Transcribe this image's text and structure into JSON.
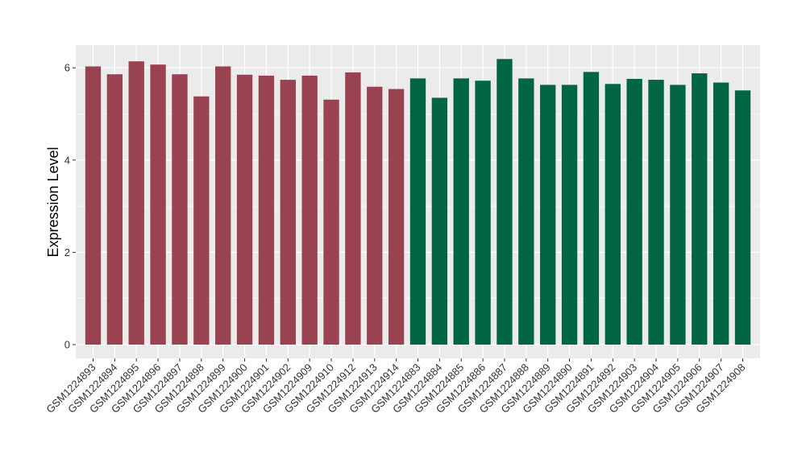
{
  "chart_data": {
    "type": "bar",
    "title": "",
    "xlabel": "",
    "ylabel": "Expression Level",
    "ylim": [
      0,
      6.5
    ],
    "yticks": [
      0,
      2,
      4,
      6
    ],
    "grid": true,
    "legend": "none",
    "categories": [
      "GSM1224893",
      "GSM1224894",
      "GSM1224895",
      "GSM1224896",
      "GSM1224897",
      "GSM1224898",
      "GSM1224899",
      "GSM1224900",
      "GSM1224901",
      "GSM1224902",
      "GSM1224909",
      "GSM1224910",
      "GSM1224912",
      "GSM1224913",
      "GSM1224914",
      "GSM1224883",
      "GSM1224884",
      "GSM1224885",
      "GSM1224886",
      "GSM1224887",
      "GSM1224888",
      "GSM1224889",
      "GSM1224890",
      "GSM1224891",
      "GSM1224892",
      "GSM1224903",
      "GSM1224904",
      "GSM1224905",
      "GSM1224906",
      "GSM1224907",
      "GSM1224908"
    ],
    "values": [
      6.03,
      5.86,
      6.14,
      6.07,
      5.86,
      5.38,
      6.03,
      5.85,
      5.83,
      5.74,
      5.83,
      5.31,
      5.9,
      5.59,
      5.54,
      5.77,
      5.35,
      5.77,
      5.72,
      6.19,
      5.77,
      5.63,
      5.63,
      5.91,
      5.65,
      5.76,
      5.74,
      5.63,
      5.88,
      5.68,
      5.51
    ],
    "group_sizes": [
      15,
      16
    ],
    "colors": [
      "#9a4350",
      "#036642"
    ],
    "panel_background": "#ebebeb",
    "grid_color": "#ffffff"
  }
}
